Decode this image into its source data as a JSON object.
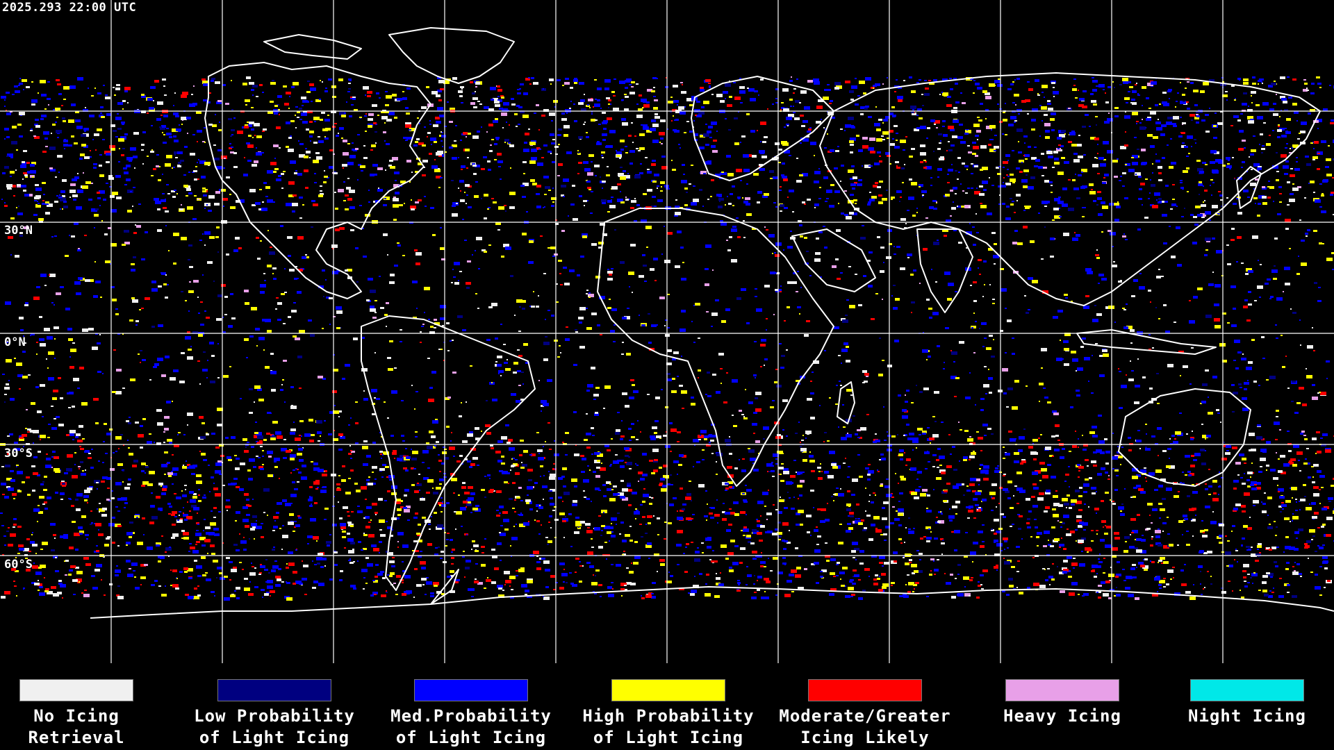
{
  "header": {
    "timestamp": "2025.293 22:00 UTC"
  },
  "latitude_labels": [
    {
      "id": "lat-30n",
      "text": "30°N"
    },
    {
      "id": "lat-0n",
      "text": "0°N"
    },
    {
      "id": "lat-30s",
      "text": "30°S"
    },
    {
      "id": "lat-60s",
      "text": "60°S"
    }
  ],
  "legend": {
    "items": [
      {
        "label_line1": "No Icing",
        "label_line2": "Retrieval",
        "color": "#f0f0f0"
      },
      {
        "label_line1": "Low Probability",
        "label_line2": "of Light Icing",
        "color": "#000080"
      },
      {
        "label_line1": "Med.Probability",
        "label_line2": "of Light Icing",
        "color": "#0000ff"
      },
      {
        "label_line1": "High Probability",
        "label_line2": "of Light Icing",
        "color": "#ffff00"
      },
      {
        "label_line1": "Moderate/Greater",
        "label_line2": "Icing Likely",
        "color": "#ff0000"
      },
      {
        "label_line1": "Heavy Icing",
        "label_line2": "",
        "color": "#e8a0e8"
      },
      {
        "label_line1": "Night Icing",
        "label_line2": "",
        "color": "#00e8e8"
      }
    ]
  },
  "colors": {
    "background": "#000000",
    "grid": "#ffffff",
    "coastline": "#ffffff"
  }
}
